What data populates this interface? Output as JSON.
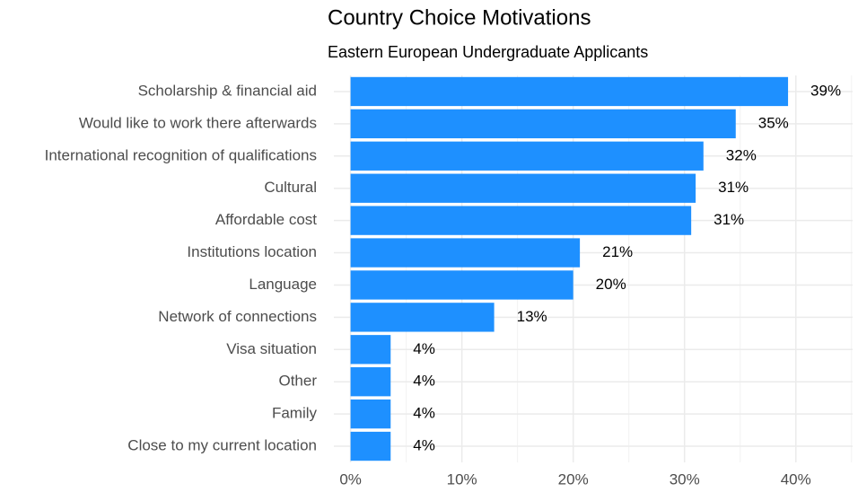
{
  "chart_data": {
    "type": "barh",
    "title": "Country Choice Motivations",
    "subtitle": "Eastern European Undergraduate Applicants",
    "categories": [
      "Scholarship & financial aid",
      "Would like to work there afterwards",
      "International recognition of qualifications",
      "Cultural",
      "Affordable cost",
      "Institutions location",
      "Language",
      "Network of connections",
      "Visa situation",
      "Other",
      "Family",
      "Close to my current location"
    ],
    "values": [
      39.3,
      34.6,
      31.7,
      31.0,
      30.6,
      20.6,
      20.0,
      12.9,
      3.6,
      3.6,
      3.6,
      3.6
    ],
    "value_labels": [
      "39%",
      "35%",
      "32%",
      "31%",
      "31%",
      "21%",
      "20%",
      "13%",
      "4%",
      "4%",
      "4%",
      "4%"
    ],
    "color": "#1e90ff",
    "xlim": [
      -1.5,
      45.1
    ],
    "xticks": [
      {
        "value": 0,
        "label": "0%"
      },
      {
        "value": 10,
        "label": "10%"
      },
      {
        "value": 20,
        "label": "20%"
      },
      {
        "value": 30,
        "label": "30%"
      },
      {
        "value": 40,
        "label": "40%"
      }
    ],
    "xticks_minor": [
      5,
      15,
      25,
      35,
      45
    ],
    "grid": true
  }
}
